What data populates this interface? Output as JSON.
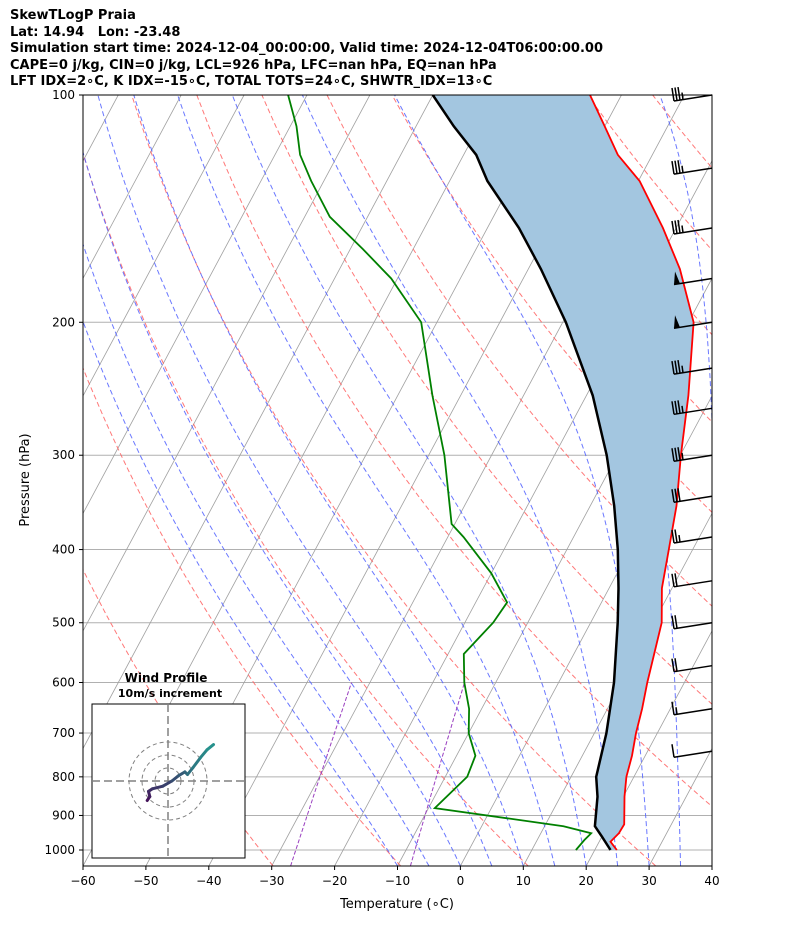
{
  "header": {
    "line1": "SkewTLogP Praia",
    "line2": "Lat: 14.94   Lon: -23.48",
    "line3": "Simulation start time: 2024-12-04_00:00:00, Valid time: 2024-12-04T06:00:00.00",
    "line4": "CAPE=0 j/kg, CIN=0 j/kg, LCL=926 hPa, LFC=nan hPa, EQ=nan hPa",
    "line5": "LFT IDX=2∘C, K IDX=-15∘C, TOTAL TOTS=24∘C, SHWTR_IDX=13∘C"
  },
  "chart_data": {
    "type": "line",
    "subtype": "skew-t log-p",
    "xlabel": "Temperature (∘C)",
    "ylabel": "Pressure (hPa)",
    "xlim": [
      -60,
      40
    ],
    "ylim": [
      1050,
      100
    ],
    "y_scale": "log",
    "x_ticks": [
      "−60",
      "−50",
      "−40",
      "−30",
      "−20",
      "−10",
      "0",
      "10",
      "20",
      "30",
      "40"
    ],
    "y_ticks": [
      "100",
      "200",
      "300",
      "400",
      "500",
      "600",
      "700",
      "800",
      "900",
      "1000"
    ],
    "grid": true,
    "colors": {
      "temperature": "#ff0000",
      "dewpoint": "#008000",
      "parcel": "#000000",
      "cin_fill": "#a3c6e0",
      "isotherm": "#a0a0a0",
      "dry_adiabat": "#ff6060",
      "moist_adiabat": "#5060ff",
      "mixing_ratio": "#9a40c0"
    },
    "series": [
      {
        "key": "temperature",
        "points": [
          [
            23.5,
            1000
          ],
          [
            21.8,
            975
          ],
          [
            22.4,
            950
          ],
          [
            22.5,
            925
          ],
          [
            20.2,
            850
          ],
          [
            18.8,
            800
          ],
          [
            17.9,
            750
          ],
          [
            16.6,
            700
          ],
          [
            15.5,
            650
          ],
          [
            14.1,
            600
          ],
          [
            11.3,
            500
          ],
          [
            8.4,
            450
          ],
          [
            6.2,
            400
          ],
          [
            3.7,
            350
          ],
          [
            0.1,
            300
          ],
          [
            -3.8,
            250
          ],
          [
            -9.2,
            200
          ],
          [
            -15.9,
            170
          ],
          [
            -22.1,
            150
          ],
          [
            -29.8,
            130
          ],
          [
            -35.5,
            120
          ],
          [
            -40,
            110
          ],
          [
            -45,
            100
          ]
        ]
      },
      {
        "key": "dewpoint",
        "points": [
          [
            17.0,
            1000
          ],
          [
            17.5,
            970
          ],
          [
            18.0,
            950
          ],
          [
            13.0,
            930
          ],
          [
            -9.0,
            880
          ],
          [
            -6.5,
            800
          ],
          [
            -7.0,
            750
          ],
          [
            -10.0,
            700
          ],
          [
            -12.0,
            650
          ],
          [
            -15.0,
            600
          ],
          [
            -17.5,
            550
          ],
          [
            -15.5,
            500
          ],
          [
            -15.0,
            470
          ],
          [
            -20.0,
            430
          ],
          [
            -27.5,
            385
          ],
          [
            -30.5,
            370
          ],
          [
            -37.5,
            300
          ],
          [
            -44.5,
            250
          ],
          [
            -52.5,
            200
          ],
          [
            -61,
            175
          ],
          [
            -68,
            160
          ],
          [
            -76,
            145
          ],
          [
            -82,
            130
          ],
          [
            -86,
            120
          ],
          [
            -89,
            110
          ],
          [
            -93,
            100
          ]
        ]
      },
      {
        "key": "parcel",
        "points": [
          [
            22.5,
            1000
          ],
          [
            20.0,
            960
          ],
          [
            18.0,
            930
          ],
          [
            15.9,
            850
          ],
          [
            14.0,
            800
          ],
          [
            11.9,
            700
          ],
          [
            8.8,
            600
          ],
          [
            4.3,
            500
          ],
          [
            1.5,
            450
          ],
          [
            -1.9,
            400
          ],
          [
            -6.2,
            350
          ],
          [
            -11.7,
            300
          ],
          [
            -19.0,
            250
          ],
          [
            -29.5,
            200
          ],
          [
            -38,
            170
          ],
          [
            -45,
            150
          ],
          [
            -54,
            130
          ],
          [
            -58,
            120
          ],
          [
            -64,
            110
          ],
          [
            -70,
            100
          ]
        ]
      }
    ],
    "wind_barbs": [
      {
        "pressure": 100,
        "speed_kt": 35
      },
      {
        "pressure": 125,
        "speed_kt": 35
      },
      {
        "pressure": 150,
        "speed_kt": 35
      },
      {
        "pressure": 175,
        "speed_kt": 50
      },
      {
        "pressure": 200,
        "speed_kt": 50
      },
      {
        "pressure": 230,
        "speed_kt": 35
      },
      {
        "pressure": 260,
        "speed_kt": 35
      },
      {
        "pressure": 300,
        "speed_kt": 35
      },
      {
        "pressure": 340,
        "speed_kt": 30
      },
      {
        "pressure": 385,
        "speed_kt": 25
      },
      {
        "pressure": 440,
        "speed_kt": 20
      },
      {
        "pressure": 500,
        "speed_kt": 20
      },
      {
        "pressure": 570,
        "speed_kt": 20
      },
      {
        "pressure": 650,
        "speed_kt": 15
      },
      {
        "pressure": 740,
        "speed_kt": 10
      }
    ],
    "inset": {
      "title": "Wind Profile",
      "subtitle": "10m/s increment",
      "rings": [
        10,
        20,
        30
      ]
    }
  }
}
